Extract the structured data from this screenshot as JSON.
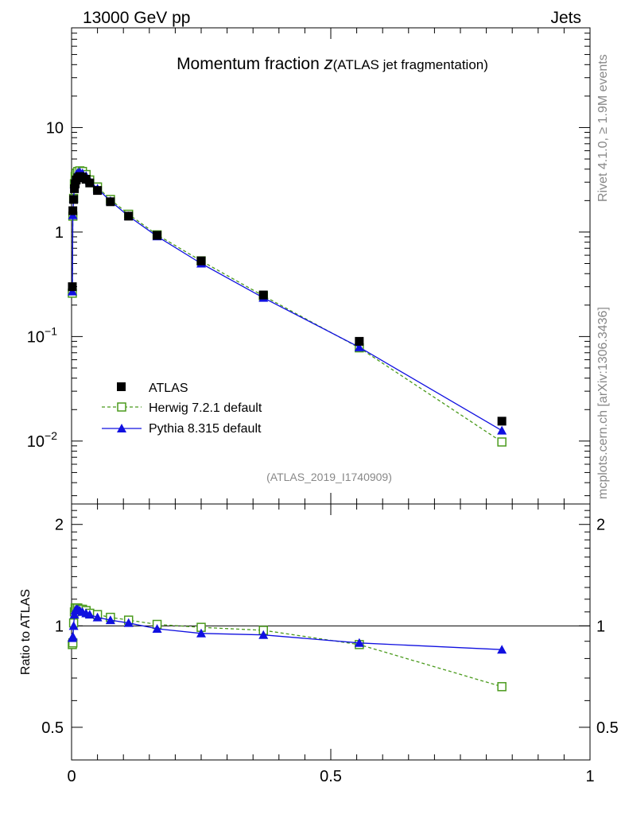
{
  "header": {
    "energy_label": "13000 GeV pp",
    "process_label": "Jets"
  },
  "side_labels": {
    "rivet": "Rivet 4.1.0, ≥ 1.9M events",
    "mcplots": "mcplots.cern.ch [arXiv:1306.3436]"
  },
  "chart_data": {
    "type": "scatter",
    "title_main": "Momentum fraction ",
    "title_var": "z",
    "title_sub": "(ATLAS jet fragmentation)",
    "analysis_id": "(ATLAS_2019_I1740909)",
    "xlabel": "",
    "ylabel": "",
    "xlim": [
      0,
      1
    ],
    "ylim": [
      0.0025,
      90
    ],
    "yscale": "log",
    "x_ticks": [
      "0",
      "0.5",
      "1"
    ],
    "x_tick_values": [
      0,
      0.5,
      1
    ],
    "y_ticks": [
      {
        "value": 10,
        "base": "10",
        "exp": ""
      },
      {
        "value": 1,
        "base": "1",
        "exp": ""
      },
      {
        "value": 0.1,
        "base": "10",
        "exp": "−1"
      },
      {
        "value": 0.01,
        "base": "10",
        "exp": "−2"
      }
    ],
    "x": [
      0.0015,
      0.0025,
      0.004,
      0.0055,
      0.007,
      0.009,
      0.012,
      0.016,
      0.021,
      0.028,
      0.035,
      0.05,
      0.075,
      0.11,
      0.165,
      0.25,
      0.37,
      0.555,
      0.83
    ],
    "series": [
      {
        "name": "ATLAS",
        "marker": "filled-square",
        "color": "#000000",
        "line": "none",
        "values": [
          0.3,
          1.6,
          2.05,
          2.6,
          2.9,
          3.15,
          3.3,
          3.4,
          3.35,
          3.2,
          2.95,
          2.5,
          1.95,
          1.42,
          0.93,
          0.53,
          0.25,
          0.09,
          0.0155
        ]
      },
      {
        "name": "Herwig 7.2.1 default",
        "marker": "open-square",
        "color": "#4a9a1c",
        "line": "dashed",
        "values": [
          0.26,
          1.42,
          2.1,
          2.9,
          3.4,
          3.65,
          3.8,
          3.85,
          3.8,
          3.55,
          3.15,
          2.7,
          2.05,
          1.48,
          0.94,
          0.53,
          0.245,
          0.078,
          0.0098
        ]
      },
      {
        "name": "Pythia 8.315 default",
        "marker": "filled-triangle",
        "color": "#1010e0",
        "line": "solid",
        "values": [
          0.27,
          1.45,
          2.1,
          2.85,
          3.3,
          3.55,
          3.7,
          3.75,
          3.65,
          3.45,
          3.1,
          2.6,
          1.98,
          1.42,
          0.91,
          0.5,
          0.235,
          0.079,
          0.0126
        ]
      }
    ],
    "legend": {
      "placement": "lower-left",
      "entries": [
        "ATLAS",
        "Herwig 7.2.1 default",
        "Pythia 8.315 default"
      ]
    },
    "ratio": {
      "ylabel": "Ratio to ATLAS",
      "ylim": [
        0.4,
        2.3
      ],
      "y_ticks": [
        "0.5",
        "1",
        "2"
      ],
      "y_tick_values": [
        0.5,
        1,
        2
      ],
      "reference": 1,
      "series": [
        {
          "name": "Herwig 7.2.1 default",
          "values": [
            0.88,
            0.89,
            1.02,
            1.1,
            1.13,
            1.13,
            1.13,
            1.12,
            1.12,
            1.11,
            1.09,
            1.08,
            1.06,
            1.04,
            1.01,
            0.99,
            0.97,
            0.88,
            0.66
          ]
        },
        {
          "name": "Pythia 8.315 default",
          "values": [
            0.92,
            0.93,
            1.0,
            1.08,
            1.11,
            1.12,
            1.12,
            1.11,
            1.1,
            1.09,
            1.08,
            1.06,
            1.04,
            1.02,
            0.98,
            0.95,
            0.94,
            0.89,
            0.85
          ]
        }
      ]
    }
  }
}
